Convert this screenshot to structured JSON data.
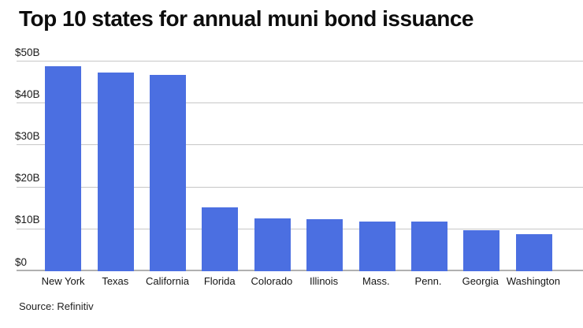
{
  "source": "Source: Refinitiv",
  "chart_data": {
    "type": "bar",
    "title": "Top 10 states for annual muni bond issuance",
    "categories": [
      "New York",
      "Texas",
      "California",
      "Florida",
      "Colorado",
      "Illinois",
      "Mass.",
      "Penn.",
      "Georgia",
      "Washington"
    ],
    "values": [
      48.9,
      47.4,
      46.9,
      15.3,
      12.6,
      12.4,
      11.9,
      11.8,
      9.7,
      8.9
    ],
    "unit": "billions of dollars",
    "xlabel": "",
    "ylabel": "",
    "ylim": [
      0,
      50
    ],
    "yticks": [
      0,
      10,
      20,
      30,
      40,
      50
    ],
    "ytick_labels": [
      "$0",
      "$10B",
      "$20B",
      "$30B",
      "$40B",
      "$50B"
    ],
    "grid": "horizontal",
    "legend": "none",
    "bar_color": "#4B6FE1",
    "gridline_color": "#c7c7c7",
    "baseline_color": "#b0b0b0"
  }
}
